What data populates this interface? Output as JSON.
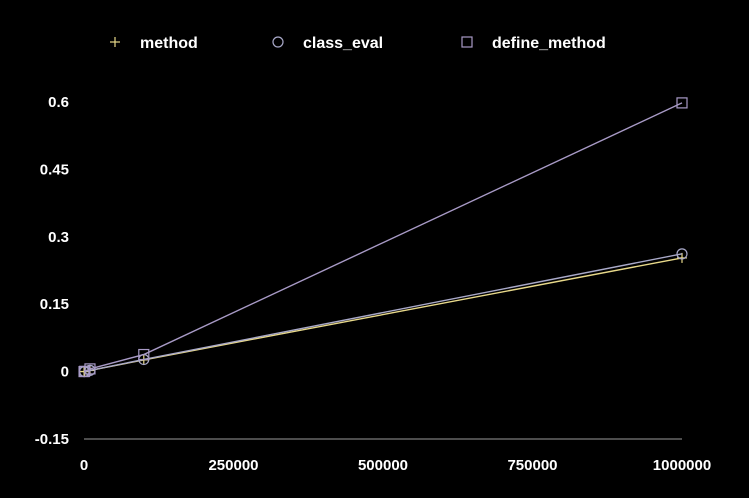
{
  "chart_data": {
    "type": "line",
    "title": "",
    "xlabel": "",
    "ylabel": "",
    "xlim": [
      0,
      1000000
    ],
    "ylim": [
      -0.15,
      0.6
    ],
    "x_ticks": [
      0,
      250000,
      500000,
      750000,
      1000000
    ],
    "x_tick_labels": [
      "0",
      "250000",
      "500000",
      "750000",
      "1000000"
    ],
    "y_ticks": [
      -0.15,
      0,
      0.15,
      0.3,
      0.45,
      0.6
    ],
    "y_tick_labels": [
      "-0.15",
      "0",
      "0.15",
      "0.3",
      "0.45",
      "0.6"
    ],
    "grid": false,
    "legend_position": "top",
    "x": [
      100,
      1000,
      10000,
      100000,
      1000000
    ],
    "series": [
      {
        "name": "method",
        "marker": "plus",
        "color": "#e8d98a",
        "values": [
          0.0,
          0.0003,
          0.0025,
          0.026,
          0.253
        ]
      },
      {
        "name": "class_eval",
        "marker": "circle",
        "color": "#a9a9c9",
        "values": [
          0.0,
          0.0003,
          0.0027,
          0.027,
          0.262
        ]
      },
      {
        "name": "define_method",
        "marker": "square",
        "color": "#a89ac6",
        "values": [
          0.0,
          0.0006,
          0.006,
          0.038,
          0.598
        ]
      }
    ]
  }
}
